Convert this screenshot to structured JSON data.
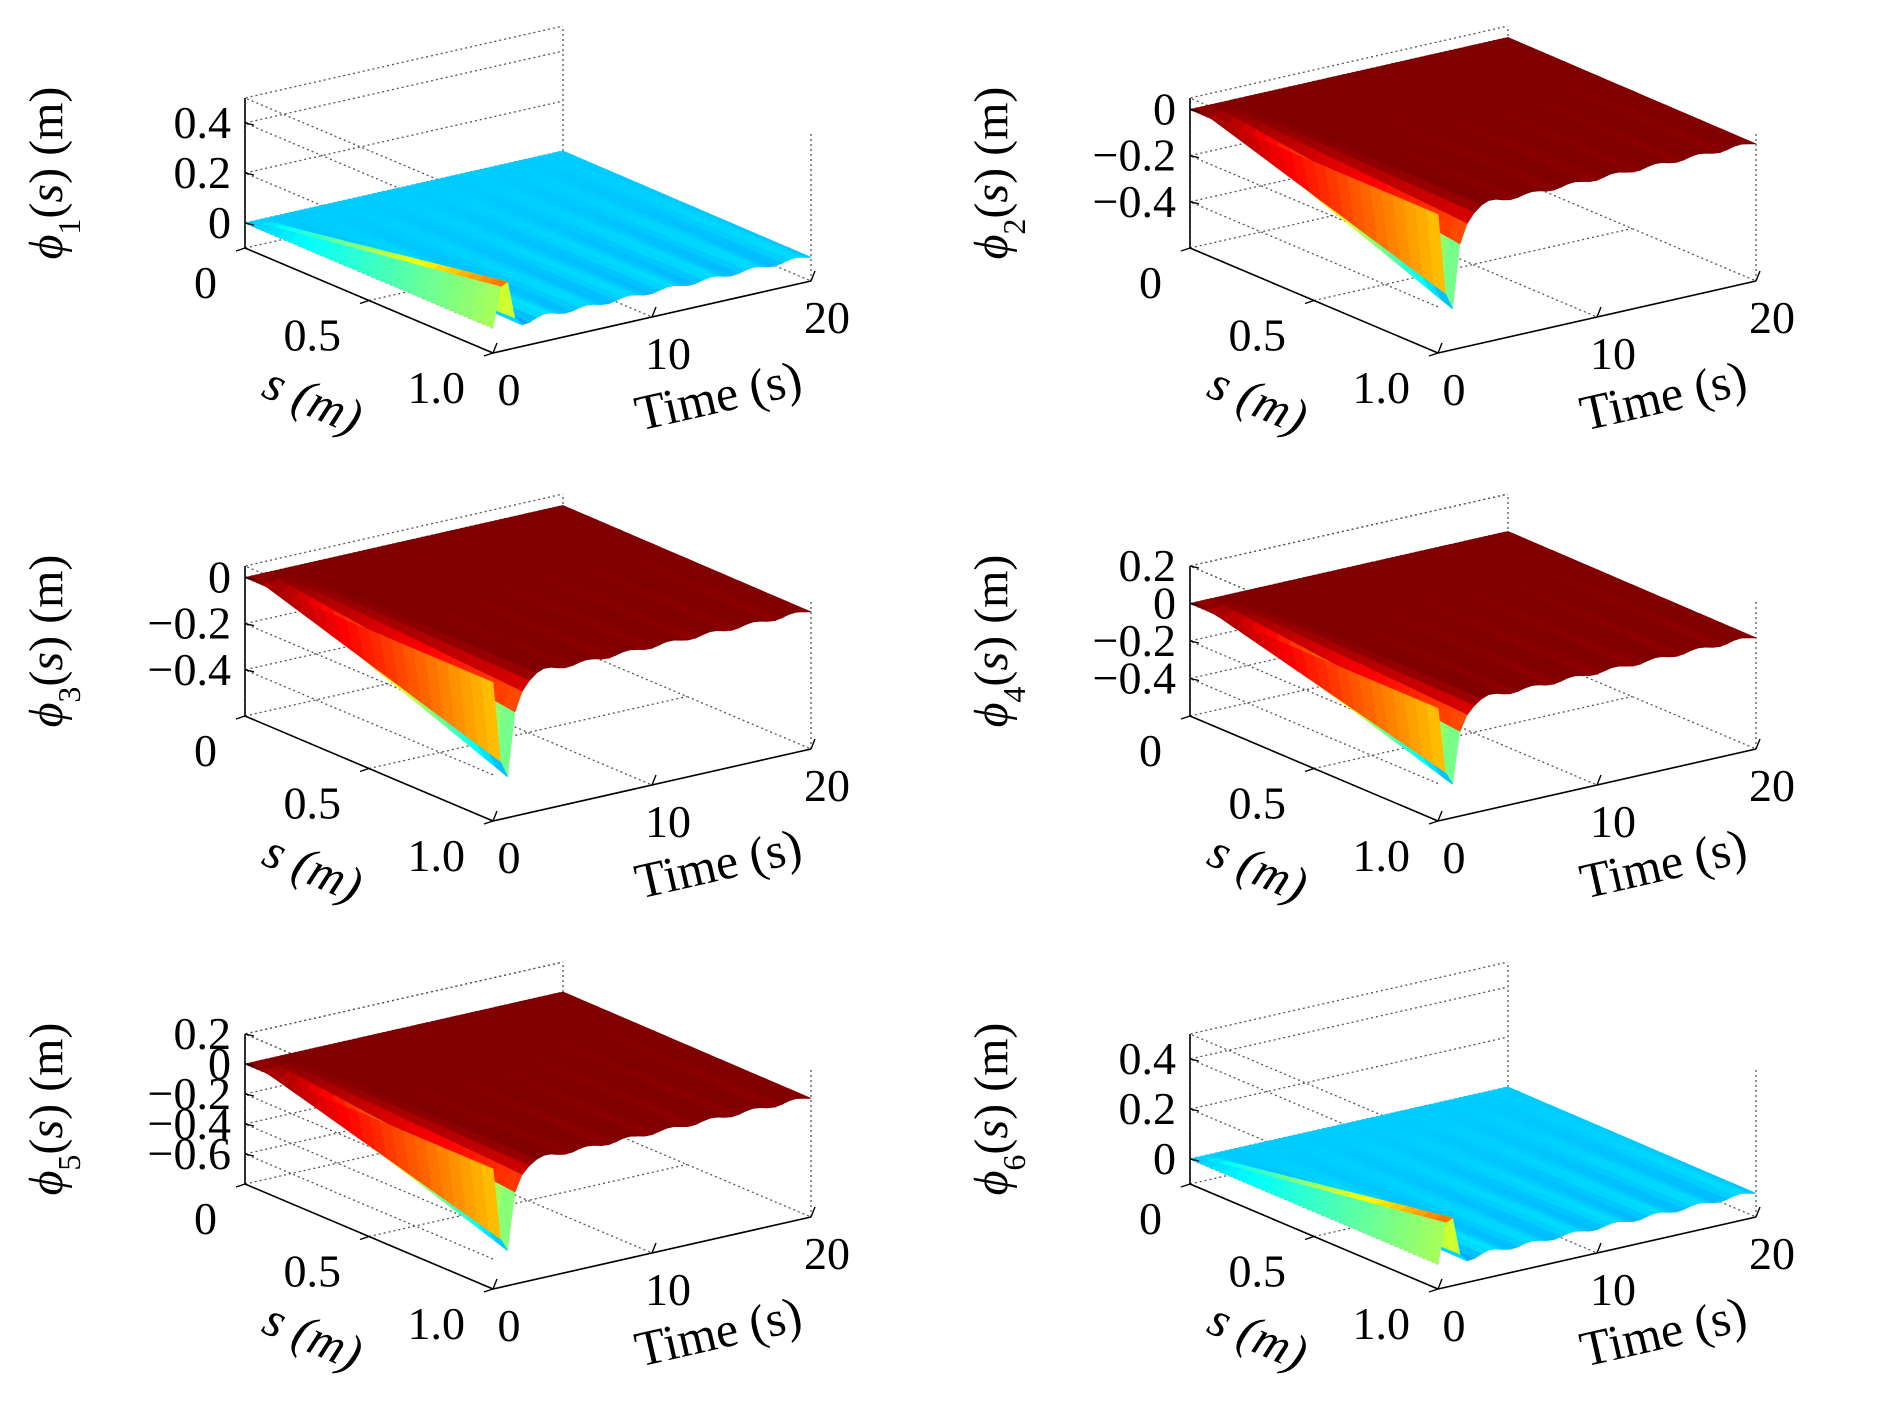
{
  "colors": {
    "jet": [
      "#00008f",
      "#0000ff",
      "#0080ff",
      "#00ffff",
      "#80ff80",
      "#ffff00",
      "#ff8000",
      "#ff0000",
      "#800000"
    ],
    "grid": "#555555",
    "axis": "#000000",
    "background": "#ffffff"
  },
  "chart_data": [
    {
      "type": "surface",
      "zlabel": "ϕ1(s) (m)",
      "zsym": "ϕ",
      "zsub": "1",
      "zvar": "s",
      "zunit": "(m)",
      "xlabel": "Time (s)",
      "ylabel": "s (m)",
      "xticks": [
        "0",
        "10",
        "20"
      ],
      "yticks": [
        "0",
        "0.5",
        "1.0"
      ],
      "zticks": [
        "0",
        "0.2",
        "0.4"
      ],
      "x_range": [
        0,
        20
      ],
      "s_range": [
        0,
        1.0
      ],
      "zlim": [
        -0.1,
        0.5
      ],
      "peak": 0.25,
      "settled": 0.0,
      "tip_transient": -0.12,
      "grid": true
    },
    {
      "type": "surface",
      "zlabel": "ϕ2(s) (m)",
      "zsym": "ϕ",
      "zsub": "2",
      "zvar": "s",
      "zunit": "(m)",
      "xlabel": "Time (s)",
      "ylabel": "s (m)",
      "xticks": [
        "0",
        "10",
        "20"
      ],
      "yticks": [
        "0",
        "0.5",
        "1.0"
      ],
      "zticks": [
        "0",
        "−0.2",
        "−0.4"
      ],
      "x_range": [
        0,
        20
      ],
      "s_range": [
        0,
        1.0
      ],
      "zlim": [
        -0.6,
        0.05
      ],
      "peak": -0.55,
      "settled": 0.0,
      "tip_transient": -0.2,
      "grid": true
    },
    {
      "type": "surface",
      "zlabel": "ϕ3(s) (m)",
      "zsym": "ϕ",
      "zsub": "3",
      "zvar": "s",
      "zunit": "(m)",
      "xlabel": "Time (s)",
      "ylabel": "s (m)",
      "xticks": [
        "0",
        "10",
        "20"
      ],
      "yticks": [
        "0",
        "0.5",
        "1.0"
      ],
      "zticks": [
        "0",
        "−0.2",
        "−0.4"
      ],
      "x_range": [
        0,
        20
      ],
      "s_range": [
        0,
        1.0
      ],
      "zlim": [
        -0.6,
        0.05
      ],
      "peak": -0.55,
      "settled": 0.0,
      "tip_transient": -0.2,
      "grid": true
    },
    {
      "type": "surface",
      "zlabel": "ϕ4(s) (m)",
      "zsym": "ϕ",
      "zsub": "4",
      "zvar": "s",
      "zunit": "(m)",
      "xlabel": "Time (s)",
      "ylabel": "s (m)",
      "xticks": [
        "0",
        "10",
        "20"
      ],
      "yticks": [
        "0",
        "0.5",
        "1.0"
      ],
      "zticks": [
        "0.2",
        "0",
        "−0.2",
        "−0.4"
      ],
      "x_range": [
        0,
        20
      ],
      "s_range": [
        0,
        1.0
      ],
      "zlim": [
        -0.6,
        0.2
      ],
      "peak": -0.55,
      "settled": 0.0,
      "tip_transient": -0.2,
      "grid": true
    },
    {
      "type": "surface",
      "zlabel": "ϕ5(s) (m)",
      "zsym": "ϕ",
      "zsub": "5",
      "zvar": "s",
      "zunit": "(m)",
      "xlabel": "Time (s)",
      "ylabel": "s (m)",
      "xticks": [
        "0",
        "10",
        "20"
      ],
      "yticks": [
        "0",
        "0.5",
        "1.0"
      ],
      "zticks": [
        "0.2",
        "0",
        "−0.2",
        "−0.4",
        "−0.6"
      ],
      "x_range": [
        0,
        20
      ],
      "s_range": [
        0,
        1.0
      ],
      "zlim": [
        -0.8,
        0.2
      ],
      "peak": -0.75,
      "settled": 0.0,
      "tip_transient": -0.2,
      "grid": true
    },
    {
      "type": "surface",
      "zlabel": "ϕ6(s) (m)",
      "zsym": "ϕ",
      "zsub": "6",
      "zvar": "s",
      "zunit": "(m)",
      "xlabel": "Time (s)",
      "ylabel": "s (m)",
      "xticks": [
        "0",
        "10",
        "20"
      ],
      "yticks": [
        "0",
        "0.5",
        "1.0"
      ],
      "zticks": [
        "0",
        "0.2",
        "0.4"
      ],
      "x_range": [
        0,
        20
      ],
      "s_range": [
        0,
        1.0
      ],
      "zlim": [
        -0.1,
        0.5
      ],
      "peak": 0.25,
      "settled": 0.0,
      "tip_transient": -0.12,
      "grid": true
    }
  ]
}
